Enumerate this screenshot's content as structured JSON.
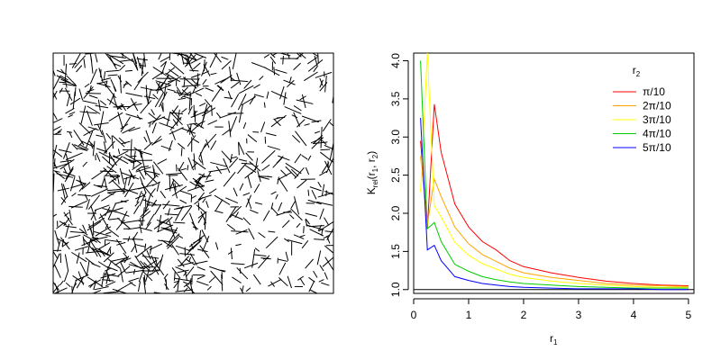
{
  "segment_panel": {
    "segment_count": 1000,
    "segment_length": 0.045,
    "color": "#000000"
  },
  "chart_data": {
    "type": "line",
    "xlabel_main": "r",
    "xlabel_sub": "1",
    "ylabel": {
      "prefix": "K",
      "sub1": "rel",
      "mid": "(r",
      "sub2": "1",
      "sep": ", r",
      "sub3": "2",
      "end": ")"
    },
    "xlim": [
      0,
      5.1
    ],
    "ylim": [
      0.95,
      4.1
    ],
    "xticks": [
      "0",
      "1",
      "2",
      "3",
      "4",
      "5"
    ],
    "yticks": [
      "1.0",
      "1.5",
      "2.0",
      "2.5",
      "3.0",
      "3.5",
      "4.0"
    ],
    "reference_line": 1.0,
    "legend": {
      "title_main": "r",
      "title_sub": "2",
      "position": "top-right"
    },
    "x": [
      0.125,
      0.25,
      0.375,
      0.5,
      0.75,
      1.0,
      1.25,
      1.5,
      1.75,
      2.0,
      2.5,
      3.0,
      3.5,
      4.0,
      4.5,
      5.0
    ],
    "series": [
      {
        "name": "π/10",
        "color": "#ff0000",
        "values": [
          2.95,
          1.8,
          3.43,
          2.8,
          2.12,
          1.82,
          1.63,
          1.52,
          1.38,
          1.3,
          1.22,
          1.16,
          1.11,
          1.08,
          1.06,
          1.05
        ]
      },
      {
        "name": "2π/10",
        "color": "#ffa500",
        "values": [
          2.75,
          1.85,
          2.45,
          2.22,
          1.82,
          1.6,
          1.46,
          1.37,
          1.28,
          1.22,
          1.16,
          1.12,
          1.08,
          1.06,
          1.05,
          1.04
        ]
      },
      {
        "name": "3π/10",
        "color": "#ffff00",
        "values": [
          2.28,
          4.1,
          2.1,
          1.95,
          1.62,
          1.45,
          1.34,
          1.27,
          1.2,
          1.16,
          1.11,
          1.08,
          1.06,
          1.04,
          1.03,
          1.03
        ]
      },
      {
        "name": "4π/10",
        "color": "#00cc00",
        "values": [
          4.0,
          1.8,
          1.88,
          1.63,
          1.33,
          1.24,
          1.17,
          1.13,
          1.1,
          1.08,
          1.06,
          1.04,
          1.03,
          1.02,
          1.02,
          1.02
        ]
      },
      {
        "name": "5π/10",
        "color": "#0000ff",
        "values": [
          3.25,
          1.52,
          1.58,
          1.38,
          1.17,
          1.12,
          1.08,
          1.06,
          1.04,
          1.03,
          1.02,
          1.01,
          1.01,
          1.01,
          1.0,
          1.0
        ]
      }
    ]
  }
}
